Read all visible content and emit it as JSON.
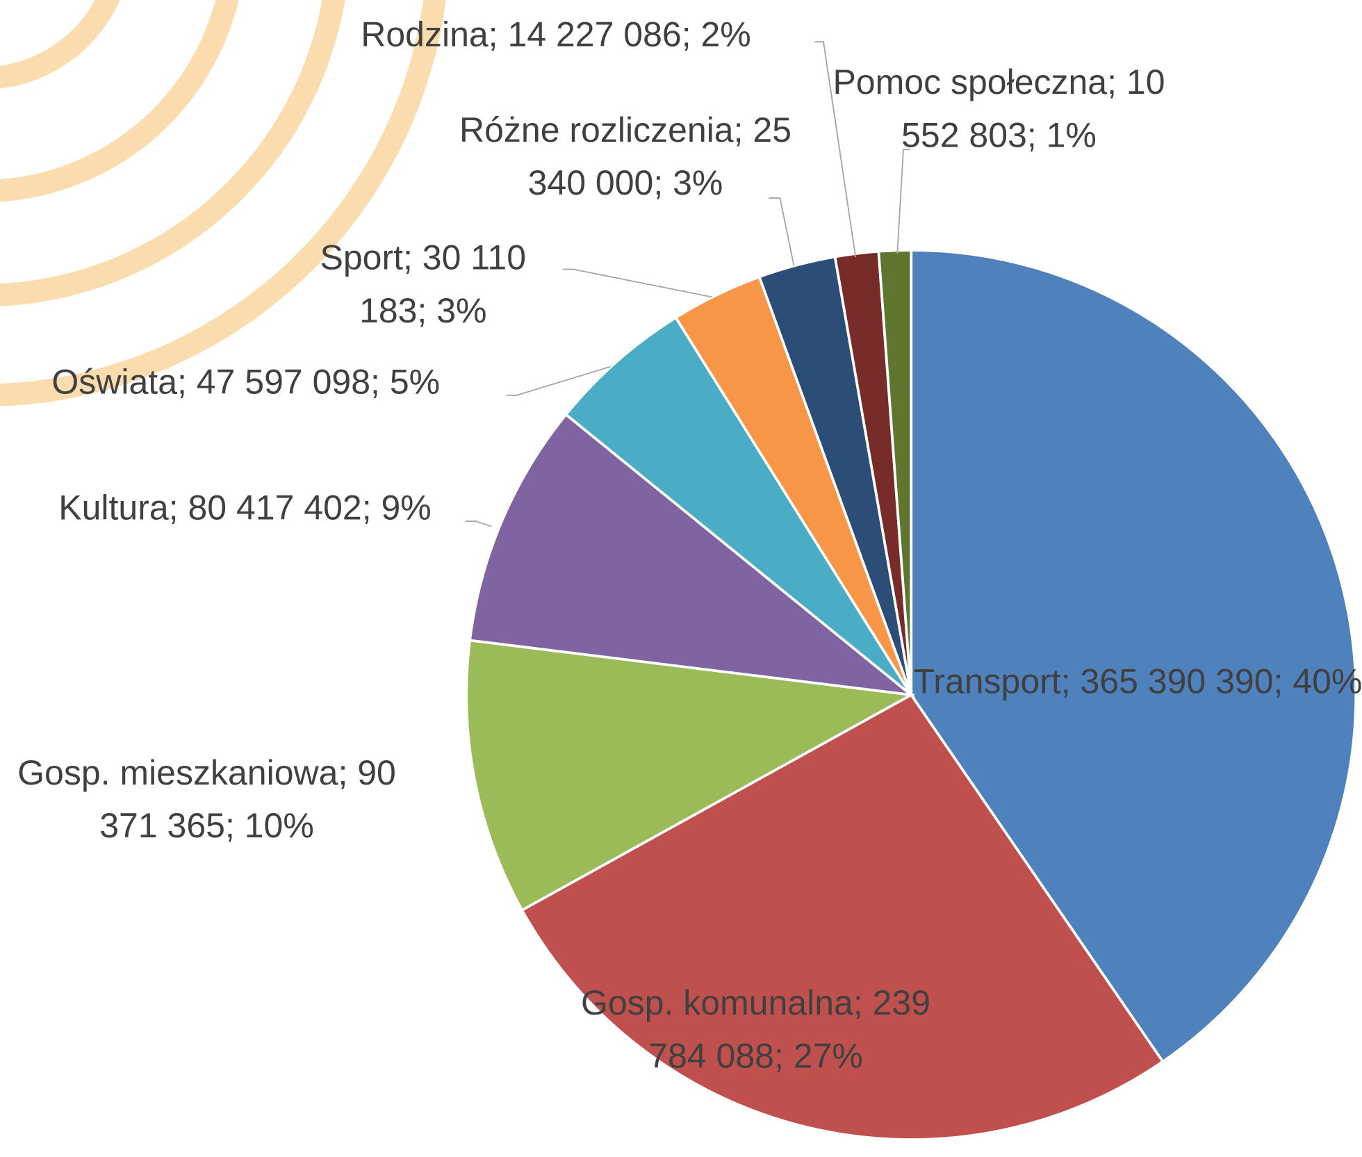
{
  "chart_data": {
    "type": "pie",
    "values": [
      365390390,
      239784088,
      90371365,
      80417402,
      47597098,
      30110183,
      25340000,
      14227086,
      10552803
    ],
    "value_labels": [
      "Transport; 365 390 390; 40%",
      "Gosp. komunalna; 239 784 088; 27%",
      "Gosp. mieszkaniowa; 90 371 365; 10%",
      "Kultura; 80 417 402; 9%",
      "Oświata; 47 597 098; 5%",
      "Sport; 30 110 183; 3%",
      "Różne rozliczenia; 25 340 000; 3%",
      "Rodzina; 14 227 086; 2%",
      "Pomoc społeczna; 10 552 803; 1%"
    ],
    "colors": [
      "#4f81bd",
      "#c0504d",
      "#9bbb59",
      "#8064a2",
      "#4bacc6",
      "#f79646",
      "#2c4d75",
      "#772c2a",
      "#5f7530"
    ]
  }
}
